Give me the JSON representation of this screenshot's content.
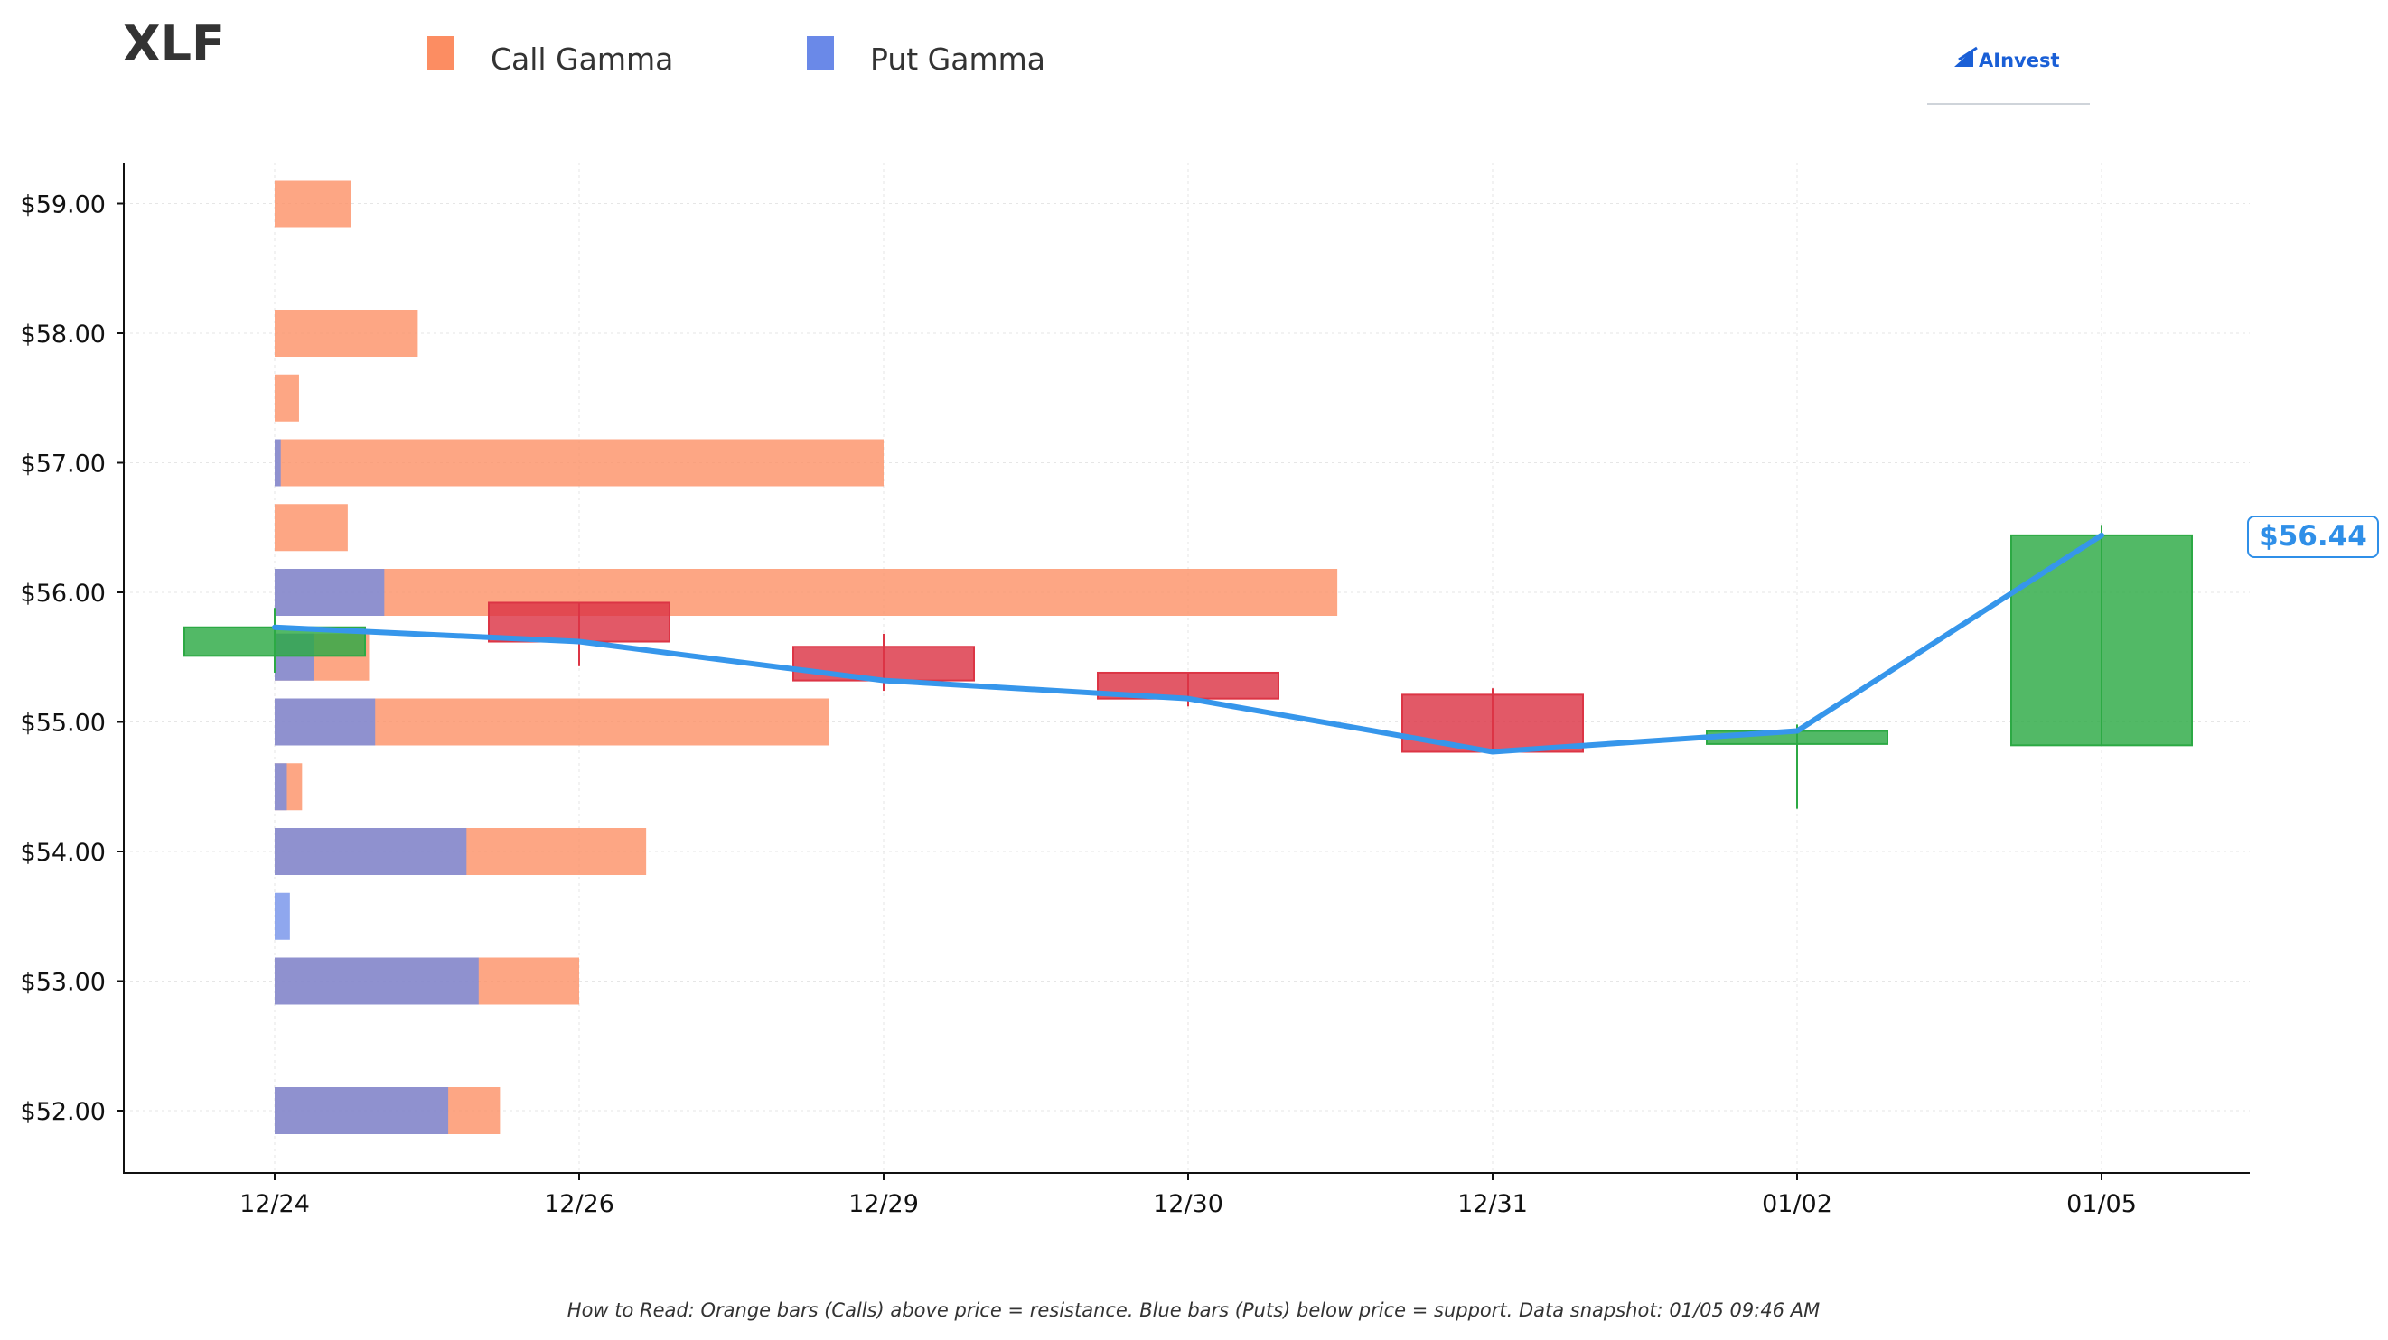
{
  "chart_data": {
    "type": "bar",
    "title": "XLF",
    "legend": [
      {
        "name": "Call Gamma",
        "color": "#fc8d62"
      },
      {
        "name": "Put Gamma",
        "color": "#6a89e8"
      }
    ],
    "legend_placement": "top",
    "brand": "AInvest",
    "categories": [
      "12/24",
      "12/26",
      "12/29",
      "12/30",
      "12/31",
      "01/02",
      "01/05"
    ],
    "y_ticks": [
      "$52.00",
      "$53.00",
      "$54.00",
      "$55.00",
      "$56.00",
      "$57.00",
      "$58.00",
      "$59.00"
    ],
    "ylim": [
      51.55,
      59.33
    ],
    "grid": true,
    "gamma_bars": [
      {
        "strike": 59.0,
        "call": 0.25,
        "put": 0.0
      },
      {
        "strike": 58.0,
        "call": 0.47,
        "put": 0.0
      },
      {
        "strike": 57.5,
        "call": 0.08,
        "put": 0.0
      },
      {
        "strike": 57.0,
        "call": 2.0,
        "put": 0.02
      },
      {
        "strike": 56.5,
        "call": 0.24,
        "put": 0.0
      },
      {
        "strike": 56.0,
        "call": 3.49,
        "put": 0.36
      },
      {
        "strike": 55.5,
        "call": 0.31,
        "put": 0.13
      },
      {
        "strike": 55.0,
        "call": 1.82,
        "put": 0.33
      },
      {
        "strike": 54.5,
        "call": 0.09,
        "put": 0.04
      },
      {
        "strike": 54.0,
        "call": 1.22,
        "put": 0.63
      },
      {
        "strike": 53.5,
        "call": 0.0,
        "put": 0.05
      },
      {
        "strike": 53.0,
        "call": 1.0,
        "put": 0.67
      },
      {
        "strike": 52.0,
        "call": 0.74,
        "put": 0.57
      }
    ],
    "candles": [
      {
        "date": "12/24",
        "open": 55.51,
        "high": 55.88,
        "low": 55.38,
        "close": 55.73
      },
      {
        "date": "12/26",
        "open": 55.92,
        "high": 55.92,
        "low": 55.43,
        "close": 55.62
      },
      {
        "date": "12/29",
        "open": 55.58,
        "high": 55.68,
        "low": 55.24,
        "close": 55.32
      },
      {
        "date": "12/30",
        "open": 55.38,
        "high": 55.38,
        "low": 55.12,
        "close": 55.18
      },
      {
        "date": "12/31",
        "open": 55.21,
        "high": 55.26,
        "low": 54.77,
        "close": 54.77
      },
      {
        "date": "01/02",
        "open": 54.83,
        "high": 54.98,
        "low": 54.33,
        "close": 54.93
      },
      {
        "date": "01/05",
        "open": 54.82,
        "high": 56.52,
        "low": 54.82,
        "close": 56.44
      }
    ],
    "close_line": [
      55.73,
      55.62,
      55.32,
      55.18,
      54.77,
      54.93,
      56.44
    ],
    "last_price_label": "$56.44",
    "colors": {
      "up": "#2ca944",
      "down": "#dc3545",
      "line": "#3696eb"
    },
    "footnote": "How to Read: Orange bars (Calls) above price = resistance. Blue bars (Puts) below price = support. Data snapshot: 01/05 09:46 AM"
  }
}
